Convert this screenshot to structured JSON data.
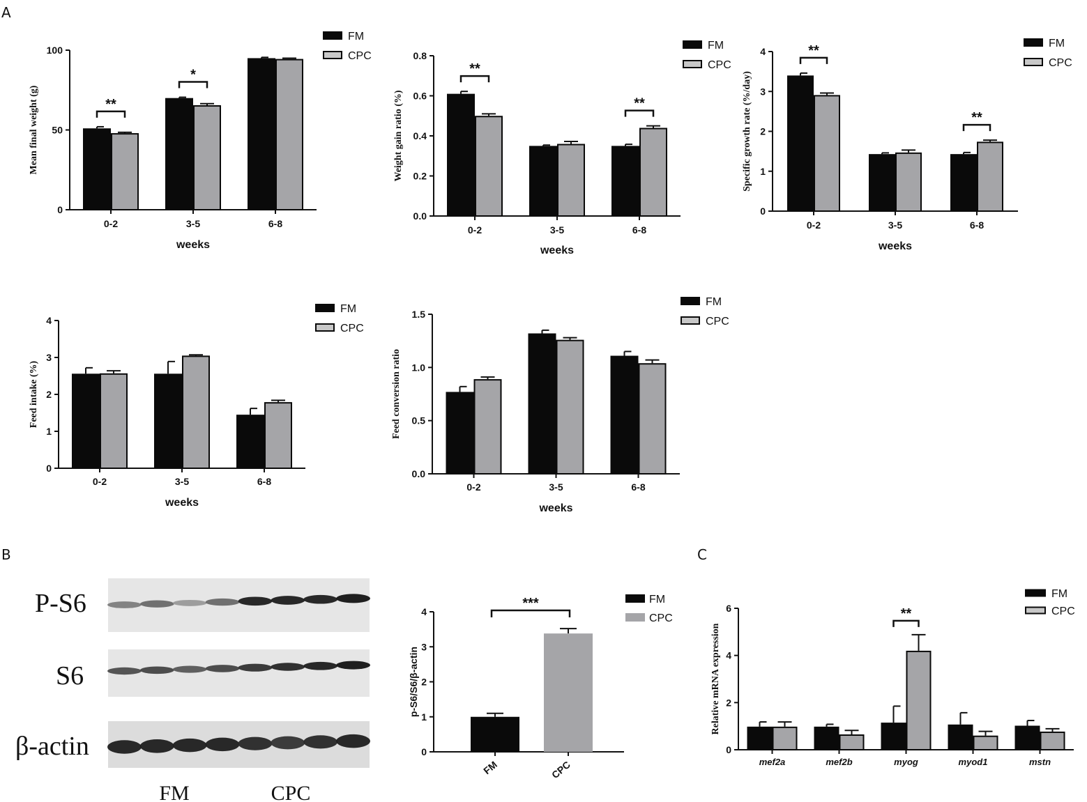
{
  "colors": {
    "FM": "#0a0a0a",
    "CPC": "#a5a5a8",
    "CPC_outline": "#0a0a0a"
  },
  "panels": {
    "A": "A",
    "B": "B",
    "C": "C"
  },
  "legend": {
    "FM": "FM",
    "CPC": "CPC"
  },
  "chart_data": [
    {
      "id": "weight",
      "type": "bar",
      "categories": [
        "0-2",
        "3-5",
        "6-8"
      ],
      "series": [
        {
          "name": "FM",
          "values": [
            51,
            70,
            95
          ],
          "errors": [
            1,
            0.5,
            0.5
          ]
        },
        {
          "name": "CPC",
          "values": [
            48,
            65.5,
            94.5
          ],
          "errors": [
            0.5,
            1,
            0.5
          ]
        }
      ],
      "xlabel": "weeks",
      "ylabel": "Mean final weight (g)",
      "ylim": [
        0,
        100
      ],
      "yticks": [
        "0",
        "50",
        "100"
      ],
      "sig": [
        {
          "category": 0,
          "text": "**"
        },
        {
          "category": 1,
          "text": "*"
        }
      ]
    },
    {
      "id": "wgr",
      "type": "bar",
      "categories": [
        "0-2",
        "3-5",
        "6-8"
      ],
      "series": [
        {
          "name": "FM",
          "values": [
            0.61,
            0.35,
            0.35
          ],
          "errors": [
            0.012,
            0.004,
            0.008
          ]
        },
        {
          "name": "CPC",
          "values": [
            0.5,
            0.36,
            0.44
          ],
          "errors": [
            0.01,
            0.012,
            0.01
          ]
        }
      ],
      "xlabel": "weeks",
      "ylabel": "Weight gain ratio (%)",
      "ylim": [
        0,
        0.8
      ],
      "yticks": [
        "0.0",
        "0.2",
        "0.4",
        "0.6",
        "0.8"
      ],
      "sig": [
        {
          "category": 0,
          "text": "**"
        },
        {
          "category": 2,
          "text": "**"
        }
      ]
    },
    {
      "id": "sgr",
      "type": "bar",
      "categories": [
        "0-2",
        "3-5",
        "6-8"
      ],
      "series": [
        {
          "name": "FM",
          "values": [
            3.4,
            1.43,
            1.43
          ],
          "errors": [
            0.06,
            0.03,
            0.04
          ]
        },
        {
          "name": "CPC",
          "values": [
            2.91,
            1.47,
            1.74
          ],
          "errors": [
            0.05,
            0.06,
            0.04
          ]
        }
      ],
      "xlabel": "weeks",
      "ylabel": "Specific growth rate (%/day)",
      "ylim": [
        0,
        4
      ],
      "yticks": [
        "0",
        "1",
        "2",
        "3",
        "4"
      ],
      "sig": [
        {
          "category": 0,
          "text": "**"
        },
        {
          "category": 2,
          "text": "**"
        }
      ]
    },
    {
      "id": "feed_intake",
      "type": "bar",
      "categories": [
        "0-2",
        "3-5",
        "6-8"
      ],
      "series": [
        {
          "name": "FM",
          "values": [
            2.56,
            2.56,
            1.45
          ],
          "errors": [
            0.16,
            0.33,
            0.17
          ]
        },
        {
          "name": "CPC",
          "values": [
            2.57,
            3.05,
            1.79
          ],
          "errors": [
            0.07,
            0.02,
            0.05
          ]
        }
      ],
      "xlabel": "weeks",
      "ylabel": "Feed intake (%)",
      "ylim": [
        0,
        4
      ],
      "yticks": [
        "0",
        "1",
        "2",
        "3",
        "4"
      ],
      "sig": []
    },
    {
      "id": "fcr",
      "type": "bar",
      "categories": [
        "0-2",
        "3-5",
        "6-8"
      ],
      "series": [
        {
          "name": "FM",
          "values": [
            0.77,
            1.32,
            1.11
          ],
          "errors": [
            0.05,
            0.03,
            0.04
          ]
        },
        {
          "name": "CPC",
          "values": [
            0.89,
            1.26,
            1.04
          ],
          "errors": [
            0.02,
            0.02,
            0.03
          ]
        }
      ],
      "xlabel": "weeks",
      "ylabel": "Feed conversion ratio",
      "ylim": [
        0,
        1.5
      ],
      "yticks": [
        "0.0",
        "0.5",
        "1.0",
        "1.5"
      ],
      "sig": []
    },
    {
      "id": "ps6",
      "type": "bar",
      "categories": [
        "FM",
        "CPC"
      ],
      "values": [
        1.0,
        3.38
      ],
      "errors": [
        0.1,
        0.14
      ],
      "ylabel": "p-S6/S6/β-actin",
      "ylim": [
        0,
        4
      ],
      "yticks": [
        "0",
        "1",
        "2",
        "3",
        "4"
      ],
      "sig": [
        {
          "text": "***"
        }
      ]
    },
    {
      "id": "mrna",
      "type": "bar",
      "categories": [
        "mef2a",
        "mef2b",
        "myog",
        "myod1",
        "mstn"
      ],
      "series": [
        {
          "name": "FM",
          "values": [
            0.98,
            0.98,
            1.15,
            1.07,
            1.02
          ],
          "errors": [
            0.2,
            0.1,
            0.7,
            0.5,
            0.22
          ]
        },
        {
          "name": "CPC",
          "values": [
            0.98,
            0.65,
            4.2,
            0.6,
            0.77
          ],
          "errors": [
            0.2,
            0.17,
            0.68,
            0.18,
            0.12
          ]
        }
      ],
      "ylabel": "Relative mRNA expression",
      "ylim": [
        0,
        6
      ],
      "yticks": [
        "0",
        "2",
        "4",
        "6"
      ],
      "sig": [
        {
          "category": 2,
          "text": "**"
        }
      ]
    }
  ],
  "blot": {
    "rows": [
      {
        "label": "P-S6",
        "intensities": [
          0.45,
          0.55,
          0.3,
          0.55,
          0.95,
          0.95,
          0.95,
          1.0
        ]
      },
      {
        "label": "S6",
        "intensities": [
          0.7,
          0.75,
          0.65,
          0.75,
          0.85,
          0.9,
          0.95,
          1.0
        ]
      },
      {
        "label": "β-actin",
        "intensities": [
          0.95,
          0.95,
          0.95,
          0.95,
          0.9,
          0.85,
          0.9,
          0.95
        ]
      }
    ],
    "groups": [
      "FM",
      "CPC"
    ]
  }
}
